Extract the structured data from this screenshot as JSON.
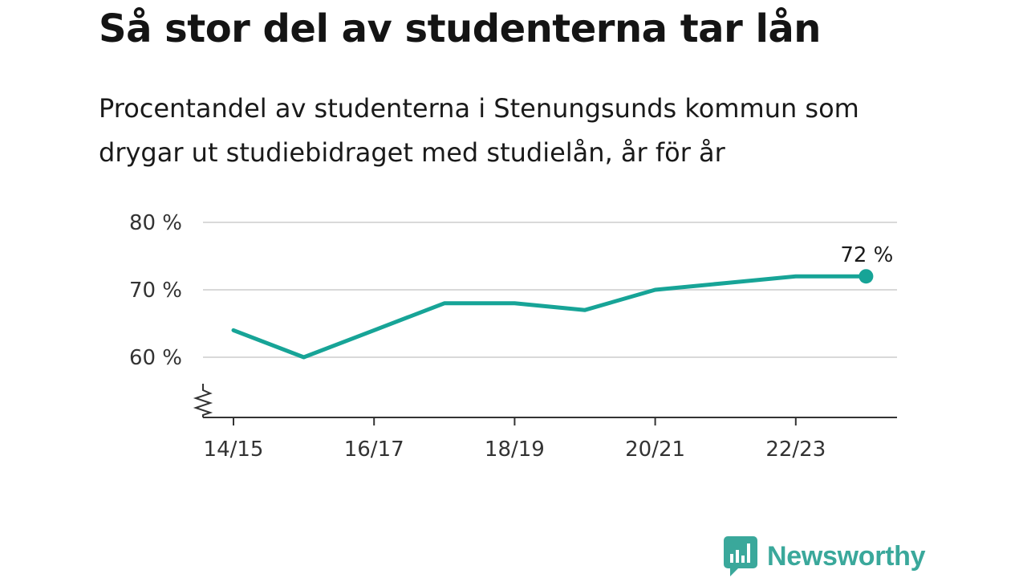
{
  "header": {
    "title": "Så stor del av studenterna tar lån",
    "subtitle": "Procentandel av studenterna i Stenungsunds kommun som drygar ut studiebidraget med studielån, år för år"
  },
  "chart_data": {
    "type": "line",
    "x": [
      "14/15",
      "15/16",
      "16/17",
      "17/18",
      "18/19",
      "19/20",
      "20/21",
      "21/22",
      "22/23",
      "23/24"
    ],
    "x_tick_labels": [
      "14/15",
      "16/17",
      "18/19",
      "20/21",
      "22/23"
    ],
    "series": [
      {
        "values": [
          64,
          60,
          64,
          68,
          68,
          67,
          70,
          71,
          72,
          72
        ],
        "color": "#17a497"
      }
    ],
    "y_ticks": [
      {
        "value": 60,
        "label": "60 %"
      },
      {
        "value": 70,
        "label": "70 %"
      },
      {
        "value": 80,
        "label": "80 %"
      }
    ],
    "ylim": [
      51,
      80
    ],
    "axis_break": true,
    "grid": true,
    "end_label": "72 %",
    "xlabel": "",
    "ylabel": ""
  },
  "branding": {
    "logo_text": "Newsworthy",
    "logo_icon": "bar-chart-speech-bubble-icon",
    "color": "#3aa89b"
  }
}
